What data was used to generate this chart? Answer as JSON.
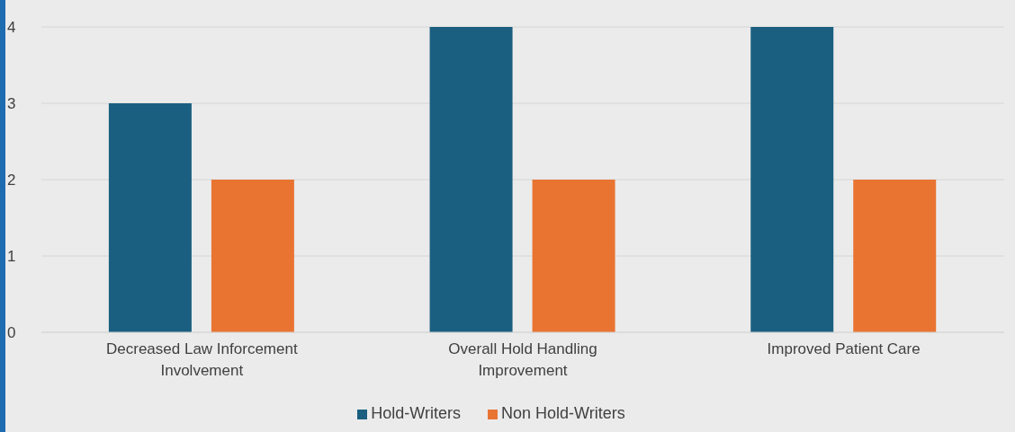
{
  "chart_data": {
    "type": "bar",
    "categories": [
      "Decreased Law Inforcement Involvement",
      "Overall Hold Handling Improvement",
      "Improved Patient Care"
    ],
    "series": [
      {
        "name": "Hold-Writers",
        "color": "#1a5f80",
        "values": [
          3,
          4,
          4
        ]
      },
      {
        "name": "Non Hold-Writers",
        "color": "#e97432",
        "values": [
          2,
          2,
          2
        ]
      }
    ],
    "ylim": [
      0,
      4
    ],
    "yticks": [
      0,
      1,
      2,
      3,
      4
    ],
    "grid": "y",
    "legend": "bottom"
  }
}
